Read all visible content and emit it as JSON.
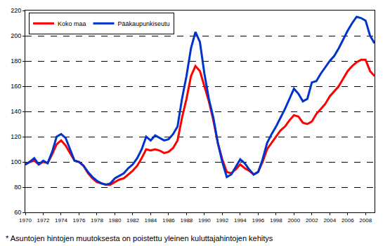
{
  "chart_data": {
    "type": "line",
    "annotations": [
      "* Asuntojen hintojen muutoksesta on poistettu yleinen kuluttajahintojen kehitys"
    ],
    "x": [
      1970.0,
      1970.5,
      1971.0,
      1971.5,
      1972.0,
      1972.5,
      1973.0,
      1973.5,
      1974.0,
      1974.5,
      1975.0,
      1975.5,
      1976.0,
      1976.5,
      1977.0,
      1977.5,
      1978.0,
      1978.5,
      1979.0,
      1979.5,
      1980.0,
      1980.5,
      1981.0,
      1981.5,
      1982.0,
      1982.5,
      1983.0,
      1983.5,
      1984.0,
      1984.5,
      1985.0,
      1985.5,
      1986.0,
      1986.5,
      1987.0,
      1987.5,
      1988.0,
      1988.5,
      1989.0,
      1989.5,
      1990.0,
      1990.5,
      1991.0,
      1991.5,
      1992.0,
      1992.5,
      1993.0,
      1993.5,
      1994.0,
      1994.5,
      1995.0,
      1995.5,
      1996.0,
      1996.5,
      1997.0,
      1997.5,
      1998.0,
      1998.5,
      1999.0,
      1999.5,
      2000.0,
      2000.5,
      2001.0,
      2001.5,
      2002.0,
      2002.5,
      2003.0,
      2003.5,
      2004.0,
      2004.5,
      2005.0,
      2005.5,
      2006.0,
      2006.5,
      2007.0,
      2007.5,
      2008.0,
      2008.5,
      2009.0
    ],
    "series": [
      {
        "name": "Koko maa",
        "color": "#ff0000",
        "values": [
          98,
          100,
          101,
          98,
          100,
          99,
          106,
          114,
          117,
          113,
          107,
          101,
          100,
          97,
          91,
          87,
          84,
          83,
          82,
          82,
          84,
          86,
          87,
          90,
          93,
          97,
          103,
          110,
          109,
          110,
          109,
          107,
          108,
          111,
          117,
          135,
          150,
          168,
          176,
          172,
          160,
          148,
          133,
          115,
          102,
          92,
          91,
          94,
          98,
          95,
          93,
          90,
          92,
          100,
          110,
          115,
          120,
          125,
          128,
          133,
          137,
          136,
          131,
          130,
          132,
          138,
          142,
          146,
          152,
          156,
          160,
          166,
          172,
          176,
          179,
          181,
          181,
          172,
          168
        ]
      },
      {
        "name": "Pääkaupunkiseutu",
        "color": "#0033cc",
        "values": [
          98,
          100,
          103,
          98,
          101,
          99,
          108,
          120,
          122,
          119,
          110,
          101,
          100,
          97,
          92,
          88,
          85,
          83,
          82,
          83,
          87,
          89,
          91,
          95,
          98,
          103,
          110,
          120,
          117,
          121,
          119,
          117,
          118,
          122,
          128,
          150,
          168,
          190,
          203,
          195,
          170,
          150,
          135,
          115,
          100,
          88,
          90,
          96,
          102,
          99,
          94,
          90,
          92,
          102,
          115,
          122,
          128,
          135,
          142,
          150,
          158,
          154,
          148,
          150,
          163,
          164,
          170,
          175,
          180,
          184,
          190,
          197,
          204,
          210,
          215,
          214,
          212,
          200,
          194
        ]
      }
    ],
    "xlim": [
      1970,
      2009
    ],
    "xticks": [
      1970,
      1972,
      1974,
      1976,
      1978,
      1980,
      1982,
      1984,
      1986,
      1988,
      1990,
      1992,
      1994,
      1996,
      1998,
      2000,
      2002,
      2004,
      2006,
      2008
    ],
    "ylim": [
      60,
      220
    ],
    "yticks": [
      60,
      80,
      100,
      120,
      140,
      160,
      180,
      200,
      220
    ],
    "grid": "y",
    "legend": "top left"
  }
}
